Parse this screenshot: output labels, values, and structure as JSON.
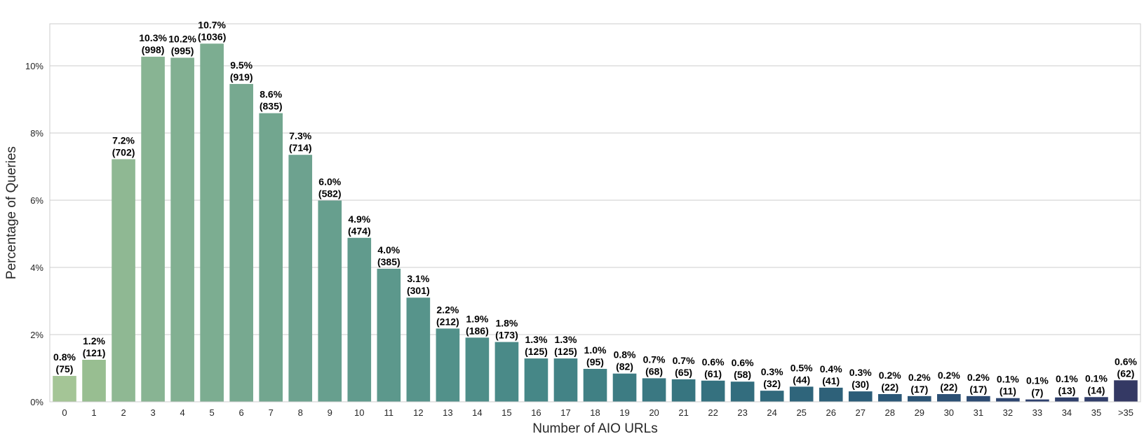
{
  "chart_data": {
    "type": "bar",
    "xlabel": "Number of AIO URLs",
    "ylabel": "Percentage of Queries",
    "ylim": [
      0,
      11.25
    ],
    "yticks": [
      0,
      2,
      4,
      6,
      8,
      10
    ],
    "ytick_labels": [
      "0%",
      "2%",
      "4%",
      "6%",
      "8%",
      "10%"
    ],
    "grid": "horizontal",
    "palette": "crest",
    "categories": [
      "0",
      "1",
      "2",
      "3",
      "4",
      "5",
      "6",
      "7",
      "8",
      "9",
      "10",
      "11",
      "12",
      "13",
      "14",
      "15",
      "16",
      "17",
      "18",
      "19",
      "20",
      "21",
      "22",
      "23",
      "24",
      "25",
      "26",
      "27",
      "28",
      "29",
      "30",
      "31",
      "32",
      "33",
      "34",
      "35",
      ">35"
    ],
    "values": [
      0.77,
      1.25,
      7.22,
      10.27,
      10.24,
      10.66,
      9.46,
      8.59,
      7.35,
      5.99,
      4.88,
      3.96,
      3.1,
      2.18,
      1.91,
      1.78,
      1.29,
      1.29,
      0.98,
      0.84,
      0.7,
      0.67,
      0.63,
      0.6,
      0.33,
      0.45,
      0.42,
      0.31,
      0.23,
      0.17,
      0.23,
      0.17,
      0.11,
      0.07,
      0.13,
      0.14,
      0.64
    ],
    "pct_labels": [
      "0.8%",
      "1.2%",
      "7.2%",
      "10.3%",
      "10.2%",
      "10.7%",
      "9.5%",
      "8.6%",
      "7.3%",
      "6.0%",
      "4.9%",
      "4.0%",
      "3.1%",
      "2.2%",
      "1.9%",
      "1.8%",
      "1.3%",
      "1.3%",
      "1.0%",
      "0.8%",
      "0.7%",
      "0.7%",
      "0.6%",
      "0.6%",
      "0.3%",
      "0.5%",
      "0.4%",
      "0.3%",
      "0.2%",
      "0.2%",
      "0.2%",
      "0.2%",
      "0.1%",
      "0.1%",
      "0.1%",
      "0.1%",
      "0.6%"
    ],
    "count_labels": [
      "(75)",
      "(121)",
      "(702)",
      "(998)",
      "(995)",
      "(1036)",
      "(919)",
      "(835)",
      "(714)",
      "(582)",
      "(474)",
      "(385)",
      "(301)",
      "(212)",
      "(186)",
      "(173)",
      "(125)",
      "(125)",
      "(95)",
      "(82)",
      "(68)",
      "(65)",
      "(61)",
      "(58)",
      "(32)",
      "(44)",
      "(41)",
      "(30)",
      "(22)",
      "(17)",
      "(22)",
      "(17)",
      "(11)",
      "(7)",
      "(13)",
      "(14)",
      "(62)"
    ],
    "colors": [
      "#a4c596",
      "#98be91",
      "#8fb893",
      "#88b493",
      "#82b092",
      "#7cad91",
      "#77a990",
      "#72a68f",
      "#6da28f",
      "#679f8e",
      "#619b8d",
      "#5c988c",
      "#57948b",
      "#52918a",
      "#4e8e89",
      "#4a8a88",
      "#468787",
      "#438386",
      "#408084",
      "#3d7c83",
      "#3a7882",
      "#377580",
      "#35717f",
      "#336d7e",
      "#31697c",
      "#2f657b",
      "#2e6179",
      "#2c5d78",
      "#2c5877",
      "#2c5475",
      "#2c5074",
      "#2d4b72",
      "#2e4670",
      "#2f416e",
      "#30406c",
      "#313e6a",
      "#343964"
    ]
  }
}
